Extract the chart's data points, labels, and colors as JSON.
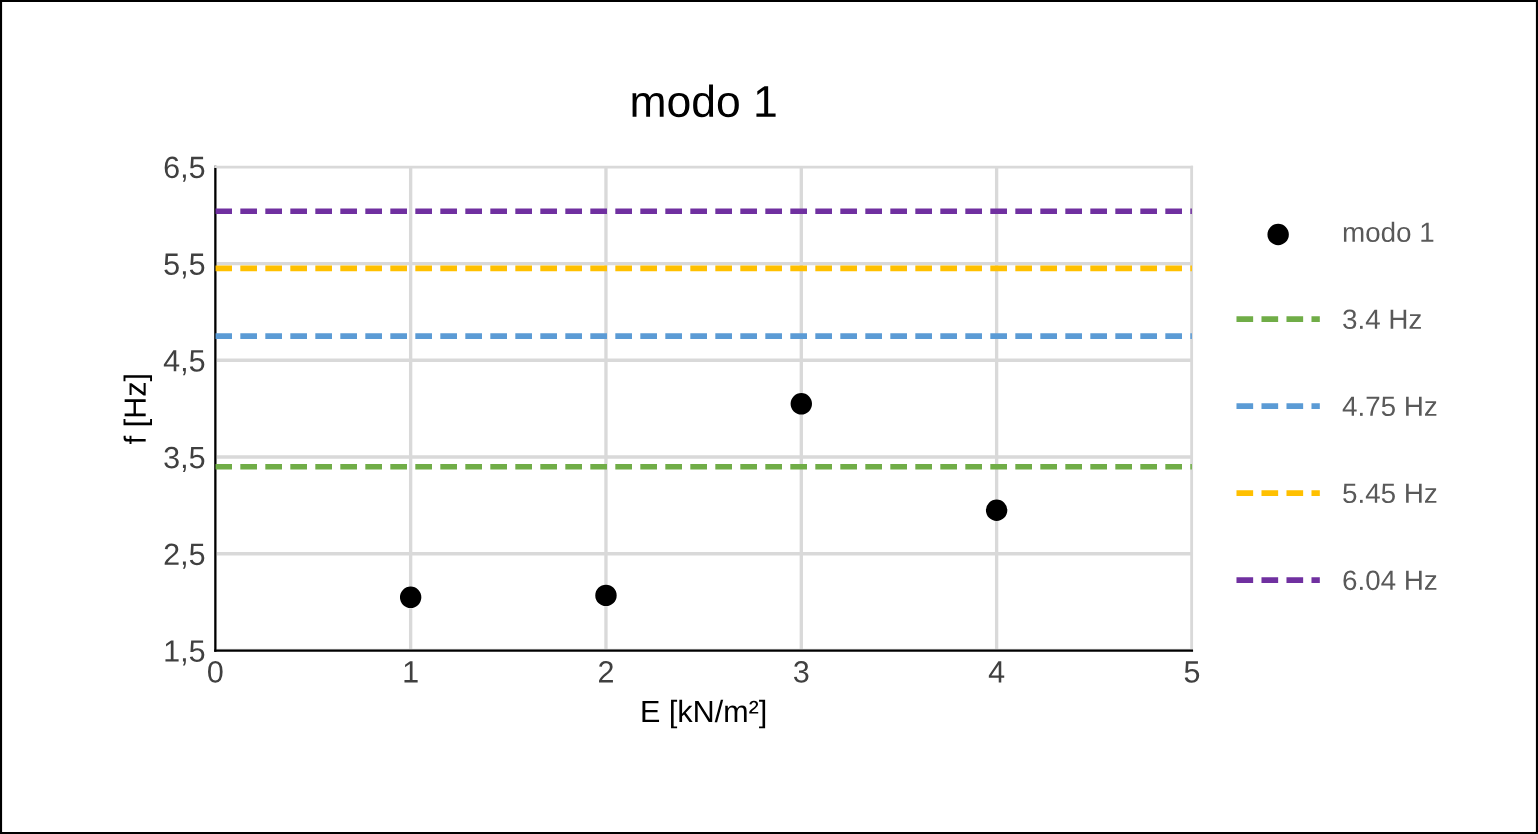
{
  "chart_data": {
    "type": "scatter",
    "title": "modo 1",
    "xlabel": "E [kN/m²]",
    "ylabel": "f [Hz]",
    "x": [
      1,
      2,
      3,
      4
    ],
    "series": [
      {
        "name": "modo 1",
        "color": "#000000",
        "values": [
          2.05,
          2.07,
          4.05,
          2.95
        ]
      }
    ],
    "xlim": [
      0,
      5
    ],
    "xticks": [
      0,
      1,
      2,
      3,
      4,
      5
    ],
    "ylim": [
      1.5,
      6.5
    ],
    "yticks": [
      {
        "value": 1.5,
        "label": "1,5"
      },
      {
        "value": 2.5,
        "label": "2,5"
      },
      {
        "value": 3.5,
        "label": "3,5"
      },
      {
        "value": 4.5,
        "label": "4,5"
      },
      {
        "value": 5.5,
        "label": "5,5"
      },
      {
        "value": 6.5,
        "label": "6,5"
      }
    ],
    "ref_lines": [
      {
        "axis": "y",
        "value": 3.4,
        "label": "3.4 Hz",
        "color": "#70ad47",
        "line_style": "dashed"
      },
      {
        "axis": "y",
        "value": 4.75,
        "label": "4.75 Hz",
        "color": "#5b9bd5",
        "line_style": "dashed"
      },
      {
        "axis": "y",
        "value": 5.45,
        "label": "5.45 Hz",
        "color": "#ffc000",
        "line_style": "dashed"
      },
      {
        "axis": "y",
        "value": 6.04,
        "label": "6.04 Hz",
        "color": "#7030a0",
        "line_style": "dashed"
      }
    ],
    "grid": true,
    "legend": "right",
    "marker": "circle"
  }
}
